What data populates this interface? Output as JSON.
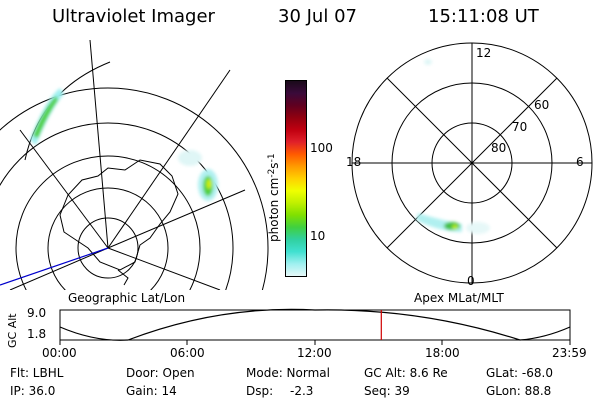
{
  "header": {
    "instrument": "Ultraviolet Imager",
    "date": "30 Jul 07",
    "time": "15:11:08 UT"
  },
  "left_panel": {
    "label": "Geographic Lat/Lon"
  },
  "right_panel": {
    "label": "Apex MLat/MLT",
    "mlt_labels": {
      "top": "12",
      "left": "18",
      "right": "6",
      "bottom": "0"
    },
    "lat_labels": [
      "60",
      "70",
      "80"
    ]
  },
  "colorbar": {
    "unit": "photon cm",
    "unit_exp1": "-2",
    "unit_mid": "s",
    "unit_exp2": "-1",
    "ticks": [
      "100",
      "10"
    ],
    "colors": [
      "#1a0a1a",
      "#3a0a3a",
      "#600020",
      "#900010",
      "#c00010",
      "#e0202a",
      "#ff5a00",
      "#ff9a00",
      "#ffd000",
      "#f0ff00",
      "#c0f000",
      "#80e000",
      "#40d040",
      "#30d0a0",
      "#40e0d0",
      "#9ff0f0",
      "#e6f8f8"
    ]
  },
  "altitude_plot": {
    "ylabel": "GC Alt",
    "yticks": [
      "9.0",
      "1.8"
    ],
    "xticks": [
      "00:00",
      "06:00",
      "12:00",
      "18:00",
      "23:59"
    ],
    "current_time_fraction": 0.63
  },
  "status": {
    "flt": "Flt: LBHL",
    "door": "Door: Open",
    "mode": "Mode: Normal",
    "gc_alt": "GC Alt: 8.6 Re",
    "glat": "GLat: -68.0",
    "ip": "IP: 36.0",
    "gain": "Gain: 14",
    "dsp_label": "Dsp:",
    "dsp_value": "-2.3",
    "seq": "Seq: 39",
    "glon": "GLon: 88.8"
  },
  "accent": {
    "time_marker": "#d00000",
    "track_line": "#0000cc"
  }
}
